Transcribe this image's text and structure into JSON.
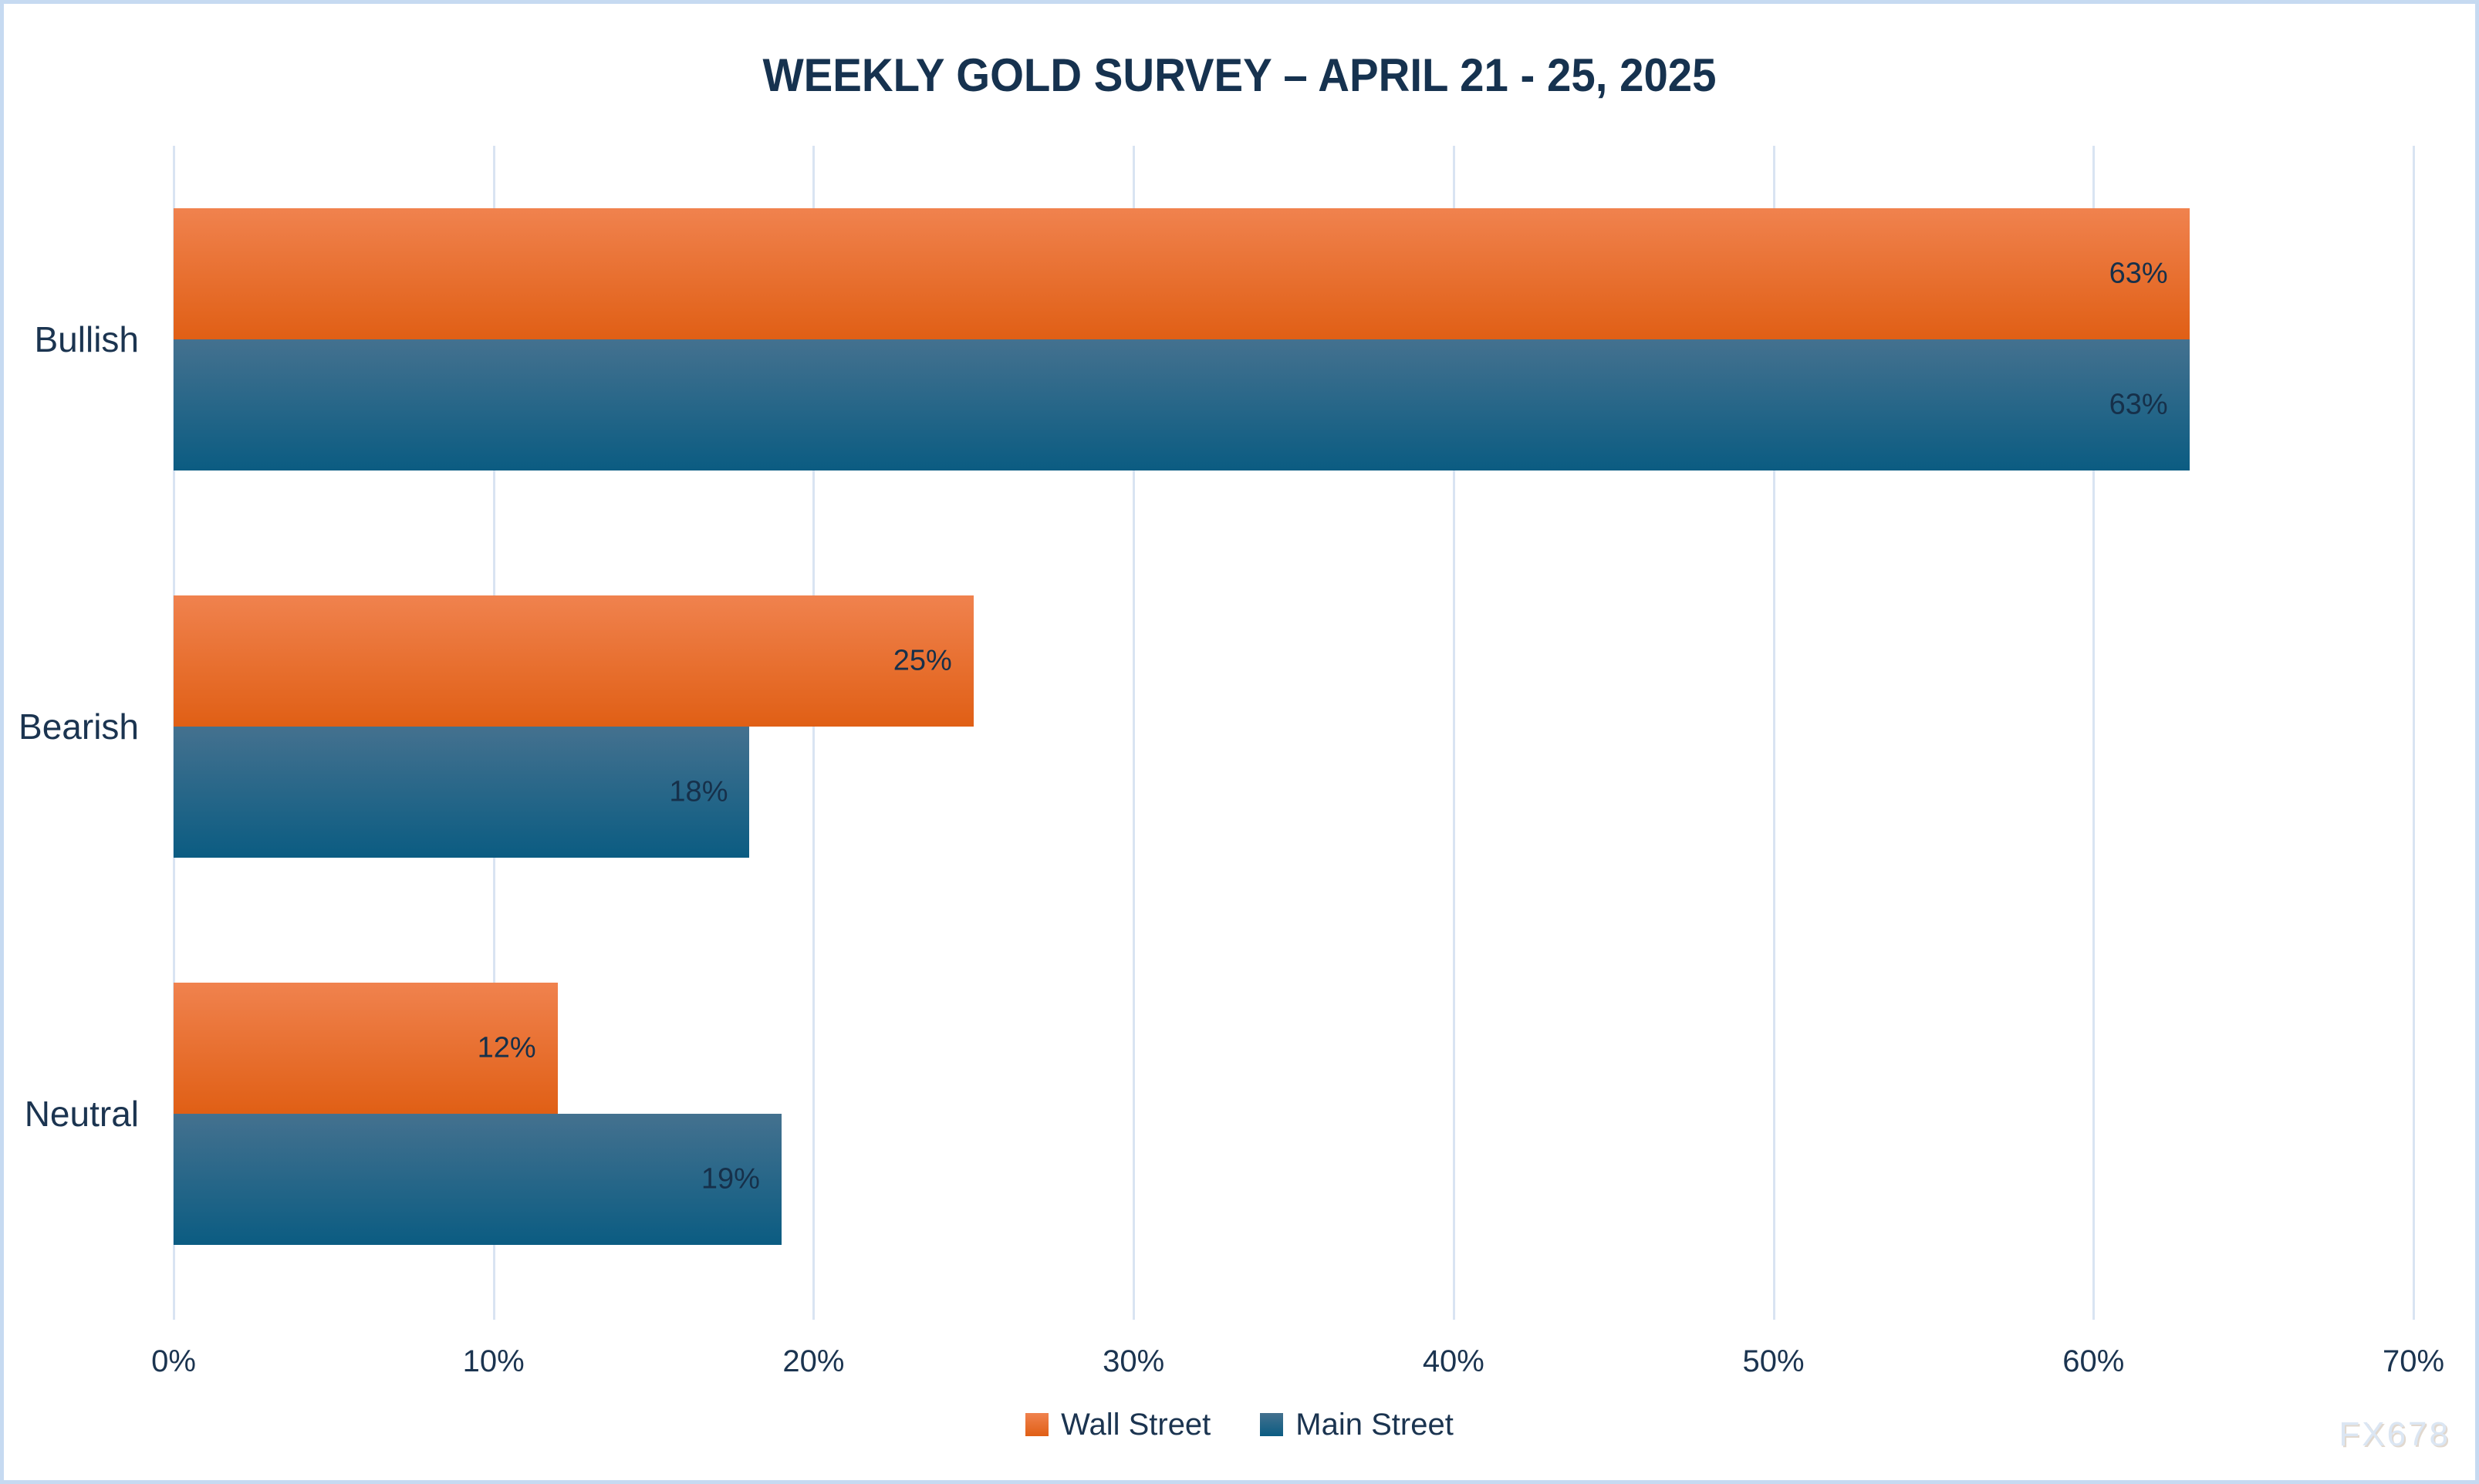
{
  "header": {
    "title": "WEEKLY GOLD SURVEY – APRIL 21 - 25, 2025"
  },
  "watermark": "FX678",
  "colors": {
    "border": "#c6daf1",
    "background": "#ffffff",
    "title_text": "#16324f",
    "label_text": "#1b3450",
    "gridline": "#d9e4f2",
    "wall_street_top": "#f0824e",
    "wall_street_bottom": "#e05f15",
    "main_street_top": "#44718f",
    "main_street_bottom": "#0b5c82"
  },
  "chart_data": {
    "type": "bar",
    "orientation": "horizontal",
    "title": "WEEKLY GOLD SURVEY – APRIL 21 - 25, 2025",
    "categories": [
      "Bullish",
      "Bearish",
      "Neutral"
    ],
    "series": [
      {
        "name": "Wall Street",
        "values": [
          63,
          25,
          12
        ],
        "color_top": "#f0824e",
        "color_bottom": "#e05f15"
      },
      {
        "name": "Main Street",
        "values": [
          63,
          18,
          19
        ],
        "color_top": "#44718f",
        "color_bottom": "#0b5c82"
      }
    ],
    "value_labels": [
      [
        "63%",
        "25%",
        "12%"
      ],
      [
        "63%",
        "18%",
        "19%"
      ]
    ],
    "x_ticks": [
      "0%",
      "10%",
      "20%",
      "30%",
      "40%",
      "50%",
      "60%",
      "70%"
    ],
    "xlim": [
      0,
      70
    ],
    "xlabel": "",
    "ylabel": "",
    "grid": "vertical",
    "legend_position": "bottom",
    "legend": [
      "Wall Street",
      "Main Street"
    ]
  }
}
